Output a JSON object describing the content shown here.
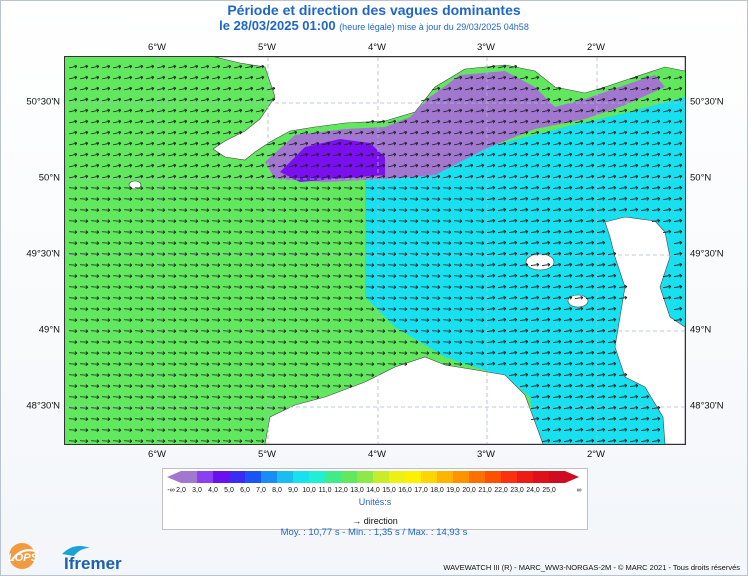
{
  "header": {
    "title": "Période et direction des vagues dominantes",
    "date": "le 28/03/2025 01:00",
    "update_note": "(heure légale) mise à jour du 29/03/2025 04h58"
  },
  "map": {
    "lon_ticks": [
      "6°W",
      "5°W",
      "4°W",
      "3°W",
      "2°W"
    ],
    "lat_ticks": [
      "50°30'N",
      "50°N",
      "49°30'N",
      "49°N",
      "48°30'N"
    ],
    "colors": {
      "land": "#ffffff",
      "green": "#62e85e",
      "cyan": "#18e0ef",
      "cyan_dark": "#19bdf0",
      "purple": "#a277cf",
      "violet": "#7a10ef",
      "arrow": "#1b1b1b"
    }
  },
  "legend": {
    "labels": [
      "-∞",
      "2,0",
      "3,0",
      "4,0",
      "5,0",
      "6,0",
      "7,0",
      "8,0",
      "9,0",
      "10,0",
      "11,0",
      "12,0",
      "13,0",
      "14,0",
      "15,0",
      "16,0",
      "17,0",
      "18,0",
      "19,0",
      "20,0",
      "21,0",
      "22,0",
      "23,0",
      "24,0",
      "25,0",
      "∞"
    ],
    "colors": [
      "#a277cf",
      "#a277cf",
      "#8a3ff0",
      "#6a10f0",
      "#3a2cf3",
      "#1955f5",
      "#1a8cf5",
      "#19bdf0",
      "#18e0ef",
      "#1ff0d2",
      "#40ec8a",
      "#62e85e",
      "#8ee84a",
      "#c6ec2a",
      "#eef014",
      "#fff000",
      "#ffd400",
      "#ffb400",
      "#ff9200",
      "#ff7000",
      "#ff5000",
      "#fb3010",
      "#ee1a14",
      "#e0101a",
      "#d00b20"
    ],
    "units": "Unités:s",
    "direction": "direction"
  },
  "stats": {
    "text": "Moy. : 10,77 s   -   Min. : 1,35 s / Max. : 14,93 s"
  },
  "footer": {
    "credit": "WAVEWATCH III (R) - MARC_WW3-NORGAS-2M - © MARC 2021 - Tous droits réservés"
  },
  "logos": {
    "lops": "LOPS",
    "ifremer": "Ifremer"
  }
}
